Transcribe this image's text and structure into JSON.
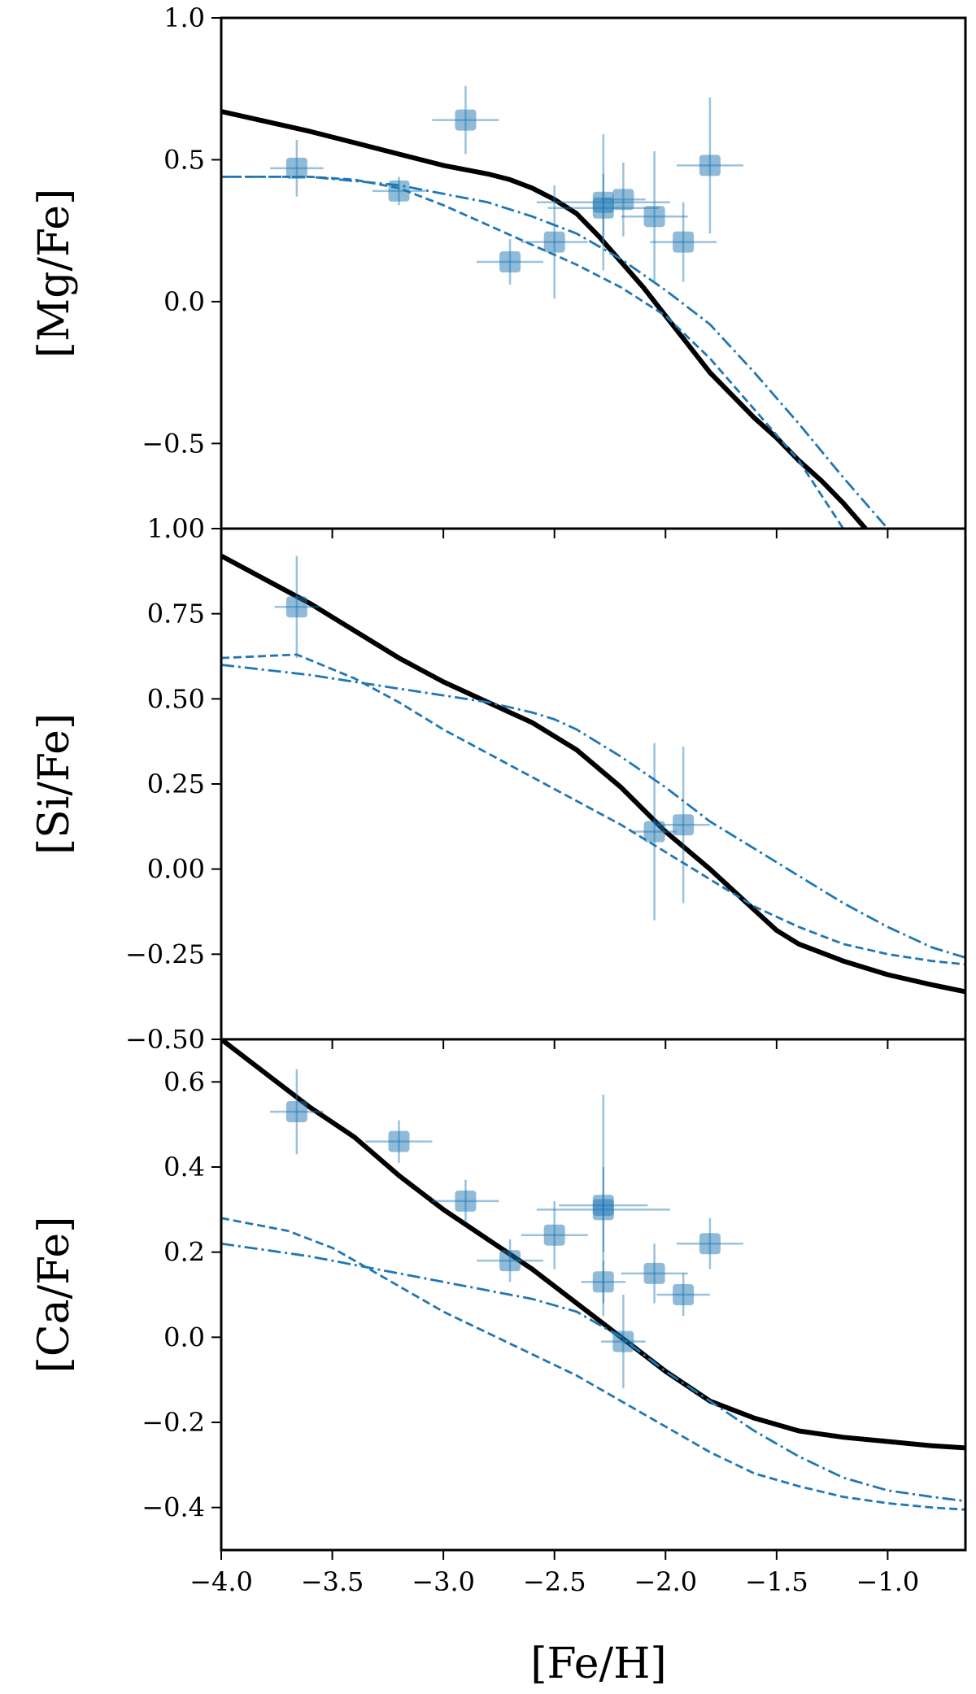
{
  "colors": {
    "model": "#1f77b4",
    "obs": "#1f77b4",
    "axes": "#000000"
  },
  "xlabel": "[Fe/H]",
  "chart_data": [
    {
      "type": "line",
      "ylabel": "[Mg/Fe]",
      "xlim": [
        -4.0,
        -0.65
      ],
      "ylim": [
        -0.8,
        1.0
      ],
      "yticks": [
        1.0,
        0.5,
        0.0,
        -0.5
      ],
      "ytick_labels": [
        "1.0",
        "0.5",
        "0.0",
        "−0.5"
      ],
      "series": [
        {
          "name": "solid",
          "style": "solid",
          "x": [
            -4.0,
            -3.6,
            -3.4,
            -3.2,
            -3.0,
            -2.8,
            -2.7,
            -2.6,
            -2.5,
            -2.4,
            -2.3,
            -2.2,
            -2.1,
            -2.0,
            -1.9,
            -1.8,
            -1.7,
            -1.6,
            -1.5,
            -1.4,
            -1.3,
            -1.2,
            -1.1
          ],
          "y": [
            0.67,
            0.6,
            0.56,
            0.52,
            0.48,
            0.45,
            0.43,
            0.4,
            0.36,
            0.31,
            0.23,
            0.14,
            0.05,
            -0.05,
            -0.15,
            -0.25,
            -0.33,
            -0.41,
            -0.48,
            -0.56,
            -0.63,
            -0.71,
            -0.8
          ]
        },
        {
          "name": "dashed",
          "style": "dashed",
          "x": [
            -4.0,
            -3.6,
            -3.4,
            -3.2,
            -3.0,
            -2.8,
            -2.6,
            -2.4,
            -2.2,
            -2.0,
            -1.8,
            -1.6,
            -1.4,
            -1.2
          ],
          "y": [
            0.44,
            0.44,
            0.43,
            0.4,
            0.34,
            0.27,
            0.2,
            0.13,
            0.05,
            -0.05,
            -0.2,
            -0.38,
            -0.56,
            -0.8
          ]
        },
        {
          "name": "dash-dot",
          "style": "dashdot",
          "x": [
            -4.0,
            -3.6,
            -3.2,
            -3.0,
            -2.8,
            -2.6,
            -2.4,
            -2.2,
            -2.0,
            -1.8,
            -1.6,
            -1.4,
            -1.2,
            -1.0
          ],
          "y": [
            0.44,
            0.44,
            0.41,
            0.38,
            0.35,
            0.3,
            0.24,
            0.15,
            0.04,
            -0.08,
            -0.25,
            -0.43,
            -0.62,
            -0.8
          ]
        }
      ],
      "points": [
        {
          "x": -3.66,
          "y": 0.47,
          "xerr": 0.12,
          "yerr": 0.1
        },
        {
          "x": -3.2,
          "y": 0.39,
          "xerr": 0.12,
          "yerr": 0.05
        },
        {
          "x": -2.9,
          "y": 0.64,
          "xerr": 0.15,
          "yerr": 0.12
        },
        {
          "x": -2.7,
          "y": 0.14,
          "xerr": 0.15,
          "yerr": 0.08
        },
        {
          "x": -2.5,
          "y": 0.21,
          "xerr": 0.15,
          "yerr": 0.2
        },
        {
          "x": -2.28,
          "y": 0.35,
          "xerr": 0.3,
          "yerr": 0.24
        },
        {
          "x": -2.28,
          "y": 0.33,
          "xerr": 0.25,
          "yerr": 0.12
        },
        {
          "x": -2.19,
          "y": 0.36,
          "xerr": 0.1,
          "yerr": 0.13
        },
        {
          "x": -2.05,
          "y": 0.3,
          "xerr": 0.15,
          "yerr": 0.23
        },
        {
          "x": -1.92,
          "y": 0.21,
          "xerr": 0.15,
          "yerr": 0.14
        },
        {
          "x": -1.8,
          "y": 0.48,
          "xerr": 0.15,
          "yerr": 0.24
        }
      ]
    },
    {
      "type": "line",
      "ylabel": "[Si/Fe]",
      "xlim": [
        -4.0,
        -0.65
      ],
      "ylim": [
        -0.5,
        1.0
      ],
      "yticks": [
        1.0,
        0.75,
        0.5,
        0.25,
        0.0,
        -0.25,
        -0.5
      ],
      "ytick_labels": [
        "1.00",
        "0.75",
        "0.50",
        "0.25",
        "0.00",
        "−0.25",
        "−0.50"
      ],
      "series": [
        {
          "name": "solid",
          "style": "solid",
          "x": [
            -4.0,
            -3.8,
            -3.6,
            -3.4,
            -3.2,
            -3.0,
            -2.8,
            -2.6,
            -2.4,
            -2.2,
            -2.0,
            -1.8,
            -1.6,
            -1.5,
            -1.4,
            -1.2,
            -1.0,
            -0.8,
            -0.65
          ],
          "y": [
            0.92,
            0.85,
            0.78,
            0.7,
            0.62,
            0.55,
            0.49,
            0.43,
            0.35,
            0.24,
            0.11,
            0.0,
            -0.12,
            -0.18,
            -0.22,
            -0.27,
            -0.31,
            -0.34,
            -0.36
          ]
        },
        {
          "name": "dashed",
          "style": "dashed",
          "x": [
            -4.0,
            -3.66,
            -3.4,
            -3.2,
            -3.0,
            -2.8,
            -2.6,
            -2.4,
            -2.2,
            -2.0,
            -1.8,
            -1.6,
            -1.4,
            -1.2,
            -1.0,
            -0.8,
            -0.65
          ],
          "y": [
            0.62,
            0.63,
            0.56,
            0.49,
            0.41,
            0.34,
            0.27,
            0.2,
            0.13,
            0.05,
            -0.03,
            -0.11,
            -0.17,
            -0.22,
            -0.25,
            -0.27,
            -0.28
          ]
        },
        {
          "name": "dash-dot",
          "style": "dashdot",
          "x": [
            -4.0,
            -3.6,
            -3.2,
            -3.0,
            -2.8,
            -2.6,
            -2.5,
            -2.4,
            -2.2,
            -2.0,
            -1.8,
            -1.6,
            -1.4,
            -1.2,
            -1.0,
            -0.8,
            -0.65
          ],
          "y": [
            0.6,
            0.57,
            0.53,
            0.51,
            0.49,
            0.46,
            0.44,
            0.41,
            0.33,
            0.24,
            0.14,
            0.06,
            -0.02,
            -0.1,
            -0.17,
            -0.23,
            -0.26
          ]
        }
      ],
      "points": [
        {
          "x": -3.66,
          "y": 0.77,
          "xerr": 0.1,
          "yerr": 0.15
        },
        {
          "x": -2.05,
          "y": 0.11,
          "xerr": 0.1,
          "yerr": 0.26
        },
        {
          "x": -1.92,
          "y": 0.13,
          "xerr": 0.12,
          "yerr": 0.23
        }
      ]
    },
    {
      "type": "line",
      "ylabel": "[Ca/Fe]",
      "xlim": [
        -4.0,
        -0.65
      ],
      "ylim": [
        -0.5,
        0.7
      ],
      "yticks": [
        0.6,
        0.4,
        0.2,
        0.0,
        -0.2,
        -0.4
      ],
      "ytick_labels": [
        "0.6",
        "0.4",
        "0.2",
        "0.0",
        "−0.2",
        "−0.4"
      ],
      "series": [
        {
          "name": "solid",
          "style": "solid",
          "x": [
            -4.0,
            -3.8,
            -3.6,
            -3.4,
            -3.2,
            -3.0,
            -2.8,
            -2.6,
            -2.4,
            -2.2,
            -2.0,
            -1.8,
            -1.6,
            -1.4,
            -1.2,
            -1.0,
            -0.8,
            -0.65
          ],
          "y": [
            0.7,
            0.62,
            0.54,
            0.47,
            0.38,
            0.3,
            0.23,
            0.16,
            0.08,
            0.0,
            -0.08,
            -0.15,
            -0.19,
            -0.22,
            -0.235,
            -0.245,
            -0.255,
            -0.26
          ]
        },
        {
          "name": "dashed",
          "style": "dashed",
          "x": [
            -4.0,
            -3.7,
            -3.5,
            -3.3,
            -3.0,
            -2.8,
            -2.6,
            -2.4,
            -2.2,
            -2.0,
            -1.8,
            -1.6,
            -1.4,
            -1.2,
            -1.0,
            -0.8,
            -0.65
          ],
          "y": [
            0.28,
            0.25,
            0.21,
            0.15,
            0.06,
            0.01,
            -0.04,
            -0.09,
            -0.15,
            -0.21,
            -0.27,
            -0.32,
            -0.35,
            -0.375,
            -0.39,
            -0.4,
            -0.405
          ]
        },
        {
          "name": "dash-dot",
          "style": "dashdot",
          "x": [
            -4.0,
            -3.6,
            -3.4,
            -3.2,
            -3.0,
            -2.8,
            -2.6,
            -2.4,
            -2.2,
            -2.0,
            -1.8,
            -1.6,
            -1.4,
            -1.2,
            -1.0,
            -0.8,
            -0.65
          ],
          "y": [
            0.22,
            0.19,
            0.17,
            0.15,
            0.13,
            0.11,
            0.09,
            0.06,
            0.0,
            -0.08,
            -0.15,
            -0.22,
            -0.28,
            -0.33,
            -0.36,
            -0.375,
            -0.385
          ]
        }
      ],
      "points": [
        {
          "x": -3.66,
          "y": 0.53,
          "xerr": 0.12,
          "yerr": 0.1
        },
        {
          "x": -3.2,
          "y": 0.46,
          "xerr": 0.15,
          "yerr": 0.05
        },
        {
          "x": -2.9,
          "y": 0.32,
          "xerr": 0.15,
          "yerr": 0.05
        },
        {
          "x": -2.7,
          "y": 0.18,
          "xerr": 0.15,
          "yerr": 0.05
        },
        {
          "x": -2.5,
          "y": 0.24,
          "xerr": 0.15,
          "yerr": 0.08
        },
        {
          "x": -2.28,
          "y": 0.3,
          "xerr": 0.3,
          "yerr": 0.1
        },
        {
          "x": -2.28,
          "y": 0.31,
          "xerr": 0.2,
          "yerr": 0.26
        },
        {
          "x": -2.28,
          "y": 0.13,
          "xerr": 0.1,
          "yerr": 0.05
        },
        {
          "x": -2.19,
          "y": -0.01,
          "xerr": 0.1,
          "yerr": 0.11
        },
        {
          "x": -2.05,
          "y": 0.15,
          "xerr": 0.15,
          "yerr": 0.07
        },
        {
          "x": -1.92,
          "y": 0.1,
          "xerr": 0.12,
          "yerr": 0.05
        },
        {
          "x": -1.8,
          "y": 0.22,
          "xerr": 0.15,
          "yerr": 0.06
        }
      ]
    }
  ],
  "xaxis": {
    "ticks": [
      -4.0,
      -3.5,
      -3.0,
      -2.5,
      -2.0,
      -1.5,
      -1.0
    ],
    "tick_labels": [
      "−4.0",
      "−3.5",
      "−3.0",
      "−2.5",
      "−2.0",
      "−1.5",
      "−1.0"
    ]
  }
}
